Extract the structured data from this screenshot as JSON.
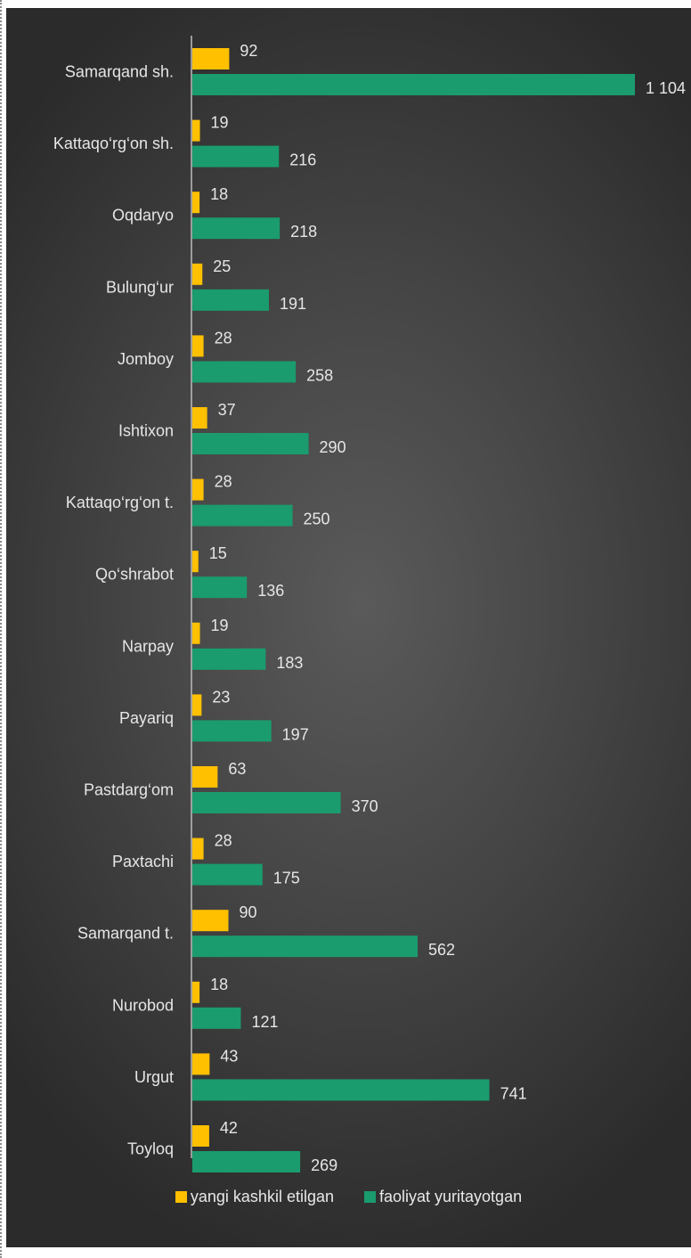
{
  "chart_data": {
    "type": "bar",
    "orientation": "horizontal",
    "categories": [
      "Samarqand sh.",
      "Kattaqo‘rg‘on sh.",
      "Oqdaryo",
      "Bulung‘ur",
      "Jomboy",
      "Ishtixon",
      "Kattaqo‘rg‘on t.",
      "Qo‘shrabot",
      "Narpay",
      "Payariq",
      "Pastdarg‘om",
      "Paxtachi",
      "Samarqand t.",
      "Nurobod",
      "Urgut",
      "Toyloq"
    ],
    "series": [
      {
        "name": "yangi kashkil etilgan",
        "color": "#ffc000",
        "values": [
          92,
          19,
          18,
          25,
          28,
          37,
          28,
          15,
          19,
          23,
          63,
          28,
          90,
          18,
          43,
          42
        ],
        "labels": [
          "92",
          "19",
          "18",
          "25",
          "28",
          "37",
          "28",
          "15",
          "19",
          "23",
          "63",
          "28",
          "90",
          "18",
          "43",
          "42"
        ]
      },
      {
        "name": "faoliyat yuritayotgan",
        "color": "#1a9c6e",
        "values": [
          1104,
          216,
          218,
          191,
          258,
          290,
          250,
          136,
          183,
          197,
          370,
          175,
          562,
          121,
          741,
          269
        ],
        "labels": [
          "1 104",
          "216",
          "218",
          "191",
          "258",
          "290",
          "250",
          "136",
          "183",
          "197",
          "370",
          "175",
          "562",
          "121",
          "741",
          "269"
        ]
      }
    ],
    "xlim": [
      0,
      1104
    ],
    "grid": false,
    "legend_position": "bottom",
    "title": "",
    "xlabel": "",
    "ylabel": ""
  }
}
